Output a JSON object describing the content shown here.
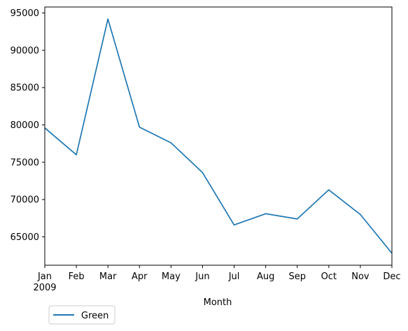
{
  "chart_data": {
    "type": "line",
    "title": "",
    "xlabel": "Month",
    "ylabel": "",
    "categories": [
      "Jan",
      "Feb",
      "Mar",
      "Apr",
      "May",
      "Jun",
      "Jul",
      "Aug",
      "Sep",
      "Oct",
      "Nov",
      "Dec"
    ],
    "year_label": "2009",
    "yticks": [
      65000,
      70000,
      75000,
      80000,
      85000,
      90000,
      95000
    ],
    "ylim": [
      61200,
      95800
    ],
    "grid": false,
    "legend_position": "below-left",
    "series": [
      {
        "name": "Green",
        "color": "#1f77b4",
        "values": [
          79600,
          76000,
          94200,
          79700,
          77600,
          73600,
          66600,
          68100,
          67400,
          71300,
          68000,
          62800
        ]
      }
    ]
  }
}
